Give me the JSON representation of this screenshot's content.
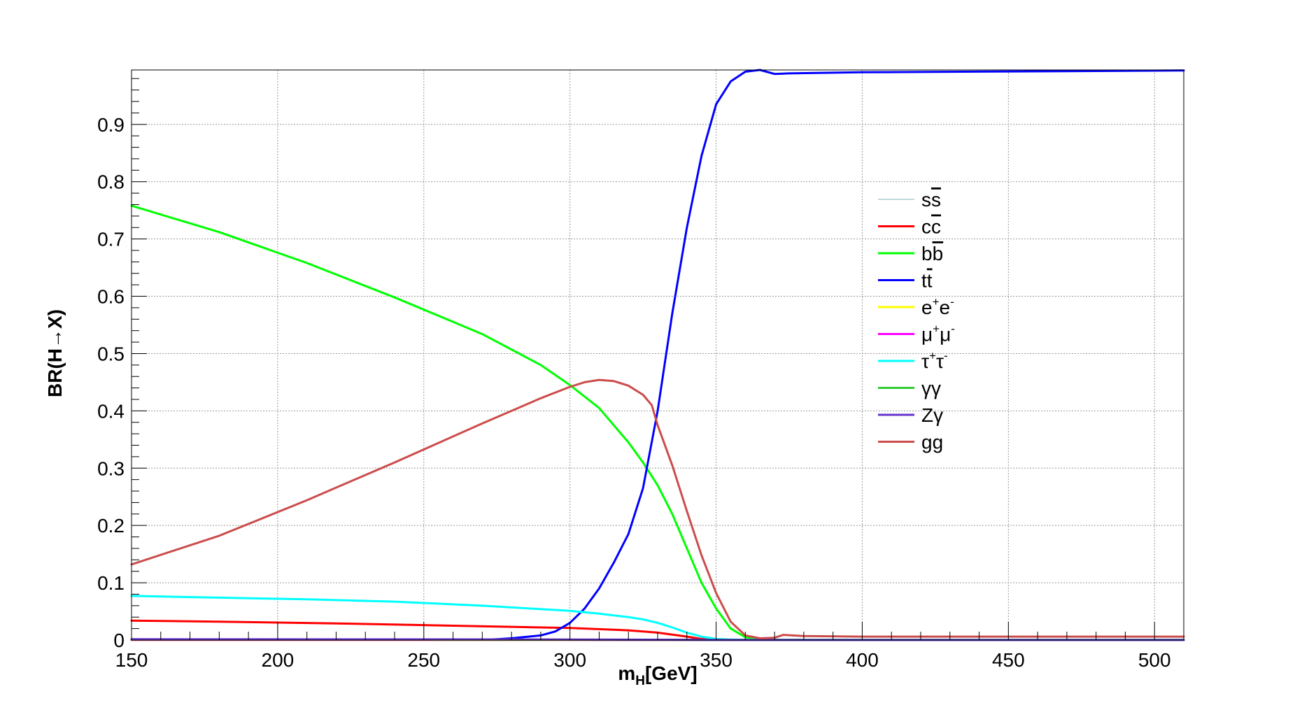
{
  "chart_data": {
    "type": "line",
    "title": "",
    "xlabel": {
      "main": "m",
      "sub": "H",
      "rest": "[GeV]"
    },
    "ylabel": "BR(H→X)",
    "xlim": [
      150,
      510
    ],
    "ylim": [
      0,
      0.995
    ],
    "grid": true,
    "legend_position": "center-right",
    "x_ticks": [
      150,
      200,
      250,
      300,
      350,
      400,
      450,
      500
    ],
    "x_tick_labels": [
      "150",
      "200",
      "250",
      "300",
      "350",
      "400",
      "450",
      "500"
    ],
    "y_ticks": [
      0,
      0.1,
      0.2,
      0.3,
      0.4,
      0.5,
      0.6,
      0.7,
      0.8,
      0.9
    ],
    "y_tick_labels": [
      "0",
      "0.1",
      "0.2",
      "0.3",
      "0.4",
      "0.5",
      "0.6",
      "0.7",
      "0.8",
      "0.9"
    ],
    "series": [
      {
        "name": "ss̅",
        "label": {
          "main": "s",
          "bar": "s"
        },
        "color": "#7fb2b2",
        "width": 1,
        "x": [
          150,
          250,
          300,
          330,
          345,
          360,
          400,
          510
        ],
        "y": [
          0.0003,
          0.0002,
          0.0002,
          0.0001,
          5e-05,
          0,
          0,
          0
        ]
      },
      {
        "name": "cc̅",
        "label": {
          "main": "c",
          "bar": "c"
        },
        "color": "#ff0000",
        "width": 3,
        "x": [
          150,
          180,
          220,
          260,
          300,
          320,
          330,
          340,
          345,
          355,
          365,
          380,
          510
        ],
        "y": [
          0.034,
          0.032,
          0.029,
          0.025,
          0.021,
          0.017,
          0.013,
          0.006,
          0.002,
          0.0005,
          0.0002,
          0.0001,
          0.0001
        ]
      },
      {
        "name": "bb̅",
        "label": {
          "main": "b",
          "bar": "b"
        },
        "color": "#00ff00",
        "width": 3,
        "x": [
          150,
          165,
          180,
          210,
          240,
          270,
          290,
          300,
          310,
          320,
          325,
          330,
          335,
          340,
          345,
          350,
          355,
          360,
          365,
          370,
          400,
          510
        ],
        "y": [
          0.758,
          0.735,
          0.712,
          0.658,
          0.598,
          0.534,
          0.48,
          0.445,
          0.405,
          0.345,
          0.31,
          0.27,
          0.22,
          0.16,
          0.1,
          0.055,
          0.02,
          0.005,
          0.001,
          0.0005,
          0.0003,
          0.0002
        ]
      },
      {
        "name": "tt̅",
        "label": {
          "main": "t",
          "bar": "t"
        },
        "color": "#0000ff",
        "width": 3,
        "x": [
          150,
          270,
          280,
          290,
          295,
          300,
          305,
          310,
          315,
          320,
          325,
          330,
          335,
          340,
          345,
          350,
          355,
          360,
          365,
          370,
          375,
          400,
          510
        ],
        "y": [
          0,
          0,
          0.003,
          0.008,
          0.015,
          0.03,
          0.055,
          0.09,
          0.135,
          0.185,
          0.265,
          0.4,
          0.57,
          0.72,
          0.845,
          0.935,
          0.975,
          0.992,
          0.995,
          0.988,
          0.989,
          0.991,
          0.994
        ]
      },
      {
        "name": "e⁺e⁻",
        "label": {
          "main": "e",
          "sup1": "+",
          "main2": "e",
          "sup2": "-"
        },
        "color": "#ffff00",
        "width": 3,
        "x": [
          150,
          510
        ],
        "y": [
          0,
          0
        ]
      },
      {
        "name": "μ⁺μ⁻",
        "label": {
          "main": "μ",
          "sup1": "+",
          "main2": "μ",
          "sup2": "-"
        },
        "color": "#ff00ff",
        "width": 3,
        "x": [
          150,
          300,
          340,
          360,
          510
        ],
        "y": [
          0.0003,
          0.0002,
          0.0001,
          0,
          0
        ]
      },
      {
        "name": "τ⁺τ⁻",
        "label": {
          "main": "τ",
          "sup1": "+",
          "main2": "τ",
          "sup2": "-"
        },
        "color": "#00ffff",
        "width": 3,
        "x": [
          150,
          180,
          210,
          240,
          270,
          300,
          310,
          320,
          325,
          330,
          335,
          340,
          345,
          350,
          355,
          360,
          370,
          400,
          510
        ],
        "y": [
          0.077,
          0.074,
          0.071,
          0.067,
          0.06,
          0.051,
          0.046,
          0.04,
          0.036,
          0.03,
          0.022,
          0.013,
          0.006,
          0.002,
          0.001,
          0.0005,
          0.0004,
          0.0003,
          0.0003
        ]
      },
      {
        "name": "γγ",
        "label": {
          "main": "γγ"
        },
        "color": "#33cc33",
        "width": 3,
        "x": [
          150,
          250,
          300,
          340,
          360,
          510
        ],
        "y": [
          0.001,
          0.0008,
          0.0006,
          0.0003,
          0.0001,
          0.0001
        ]
      },
      {
        "name": "Zγ",
        "label": {
          "main": "Zγ"
        },
        "color": "#6633cc",
        "width": 3,
        "x": [
          150,
          250,
          300,
          340,
          360,
          510
        ],
        "y": [
          0.0015,
          0.0012,
          0.001,
          0.0005,
          0.0001,
          0.0001
        ]
      },
      {
        "name": "gg",
        "label": {
          "main": "gg"
        },
        "color": "#cc4c4c",
        "width": 3,
        "x": [
          150,
          180,
          210,
          240,
          270,
          290,
          300,
          305,
          310,
          315,
          320,
          325,
          328,
          330,
          335,
          340,
          345,
          350,
          355,
          360,
          365,
          370,
          373,
          380,
          400,
          510
        ],
        "y": [
          0.132,
          0.182,
          0.244,
          0.31,
          0.378,
          0.422,
          0.442,
          0.45,
          0.454,
          0.452,
          0.444,
          0.428,
          0.41,
          0.375,
          0.305,
          0.225,
          0.148,
          0.082,
          0.032,
          0.008,
          0.003,
          0.004,
          0.009,
          0.007,
          0.006,
          0.006
        ]
      }
    ]
  }
}
